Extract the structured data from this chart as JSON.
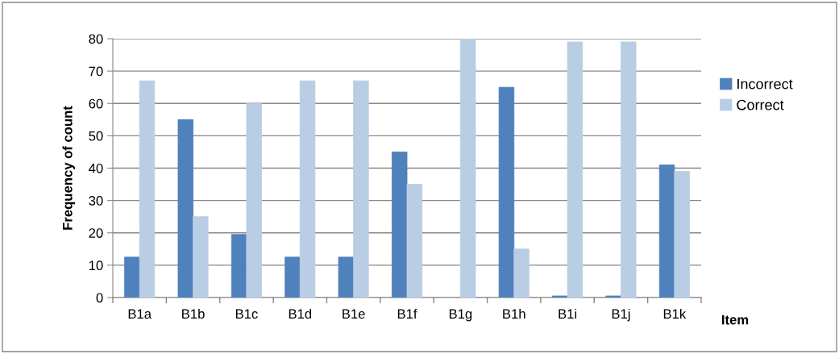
{
  "chart_data": {
    "type": "bar",
    "xlabel": "Item",
    "ylabel": "Frequency of count",
    "categories": [
      "B1a",
      "B1b",
      "B1c",
      "B1d",
      "B1e",
      "B1f",
      "B1g",
      "B1h",
      "B1i",
      "B1j",
      "B1k"
    ],
    "series": [
      {
        "name": "Incorrect",
        "color": "#4f81bd",
        "values": [
          12.5,
          55,
          19.5,
          12.5,
          12.5,
          45,
          null,
          65,
          0.5,
          0.5,
          41
        ]
      },
      {
        "name": "Correct",
        "color": "#b9cde5",
        "values": [
          67,
          25,
          60,
          67,
          67,
          35,
          80,
          15,
          79,
          79,
          39
        ]
      }
    ],
    "ylim": [
      0,
      80
    ],
    "yticks": [
      0,
      10,
      20,
      30,
      40,
      50,
      60,
      70,
      80
    ],
    "grid": "y",
    "legend": "right"
  }
}
